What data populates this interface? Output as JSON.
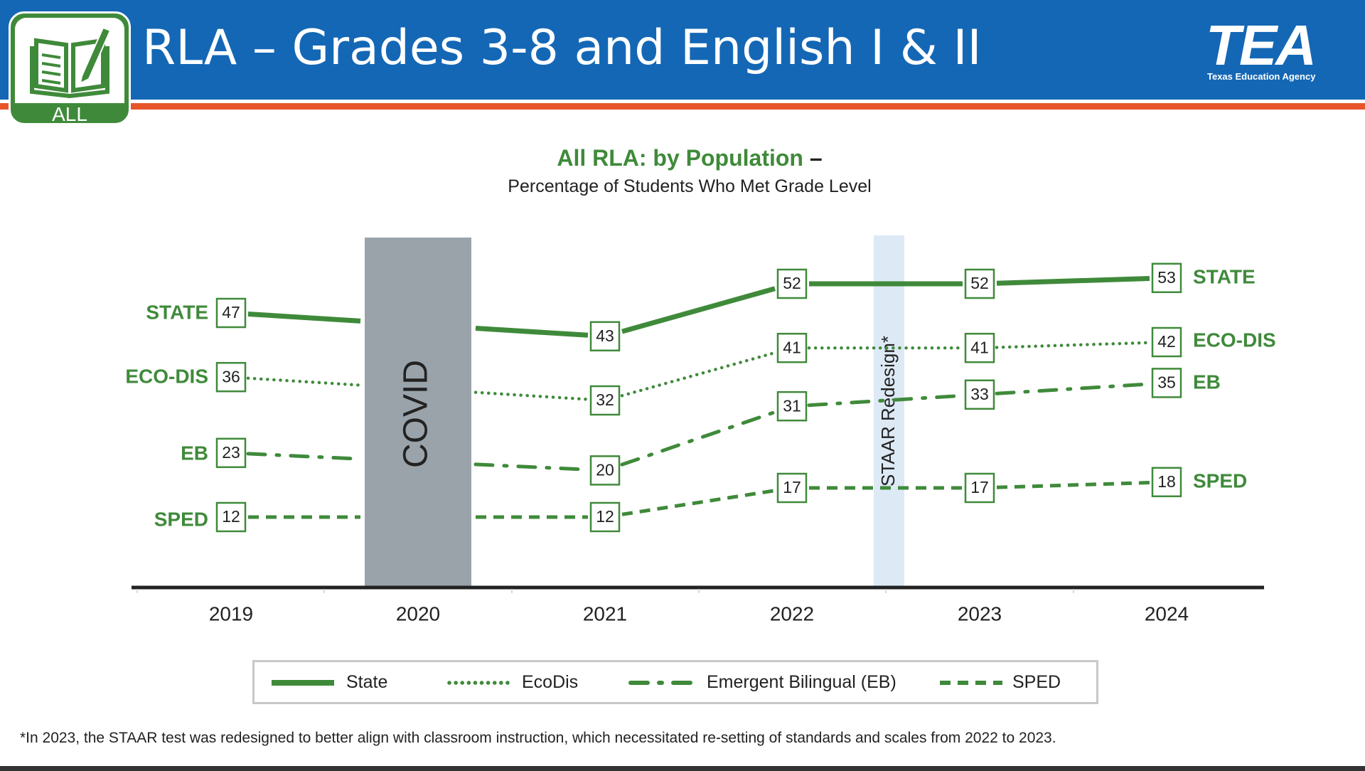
{
  "header": {
    "title": "RLA – Grades 3-8 and English I & II",
    "badge_label": "ALL",
    "badge_icon": "open-book-pencil-icon",
    "logo_text": "TEA",
    "logo_subtitle": "Texas Education Agency"
  },
  "colors": {
    "header_blue": "#1467b5",
    "accent_orange": "#e8552b",
    "series_green": "#3f8a3a",
    "covid_band": "#9aa3aa",
    "redesign_band": "#dde9f5"
  },
  "chart_data": {
    "type": "line",
    "title": "All RLA: by Population",
    "title_suffix": "–",
    "subtitle": "Percentage of Students Who Met Grade Level",
    "x": [
      "2019",
      "2020",
      "2021",
      "2022",
      "2023",
      "2024"
    ],
    "ylim": [
      0,
      60
    ],
    "grid": false,
    "legend_position": "bottom",
    "series": [
      {
        "name": "State",
        "label": "STATE",
        "style": "solid",
        "values": [
          47,
          null,
          43,
          52,
          52,
          53
        ]
      },
      {
        "name": "EcoDis",
        "label": "ECO-DIS",
        "style": "dotted",
        "values": [
          36,
          null,
          32,
          41,
          41,
          42
        ]
      },
      {
        "name": "Emergent Bilingual (EB)",
        "label": "EB",
        "style": "dashdot",
        "values": [
          23,
          null,
          20,
          31,
          33,
          35
        ]
      },
      {
        "name": "SPED",
        "label": "SPED",
        "style": "dashed",
        "values": [
          12,
          null,
          12,
          17,
          17,
          18
        ]
      }
    ],
    "annotations": [
      {
        "label": "COVID",
        "covers": "2020"
      },
      {
        "label": "STAAR Redesign*",
        "covers": "between 2022 and 2023"
      }
    ]
  },
  "footnote": "*In 2023, the STAAR test was redesigned to better align with classroom instruction, which necessitated re-setting of standards and scales from 2022 to 2023."
}
